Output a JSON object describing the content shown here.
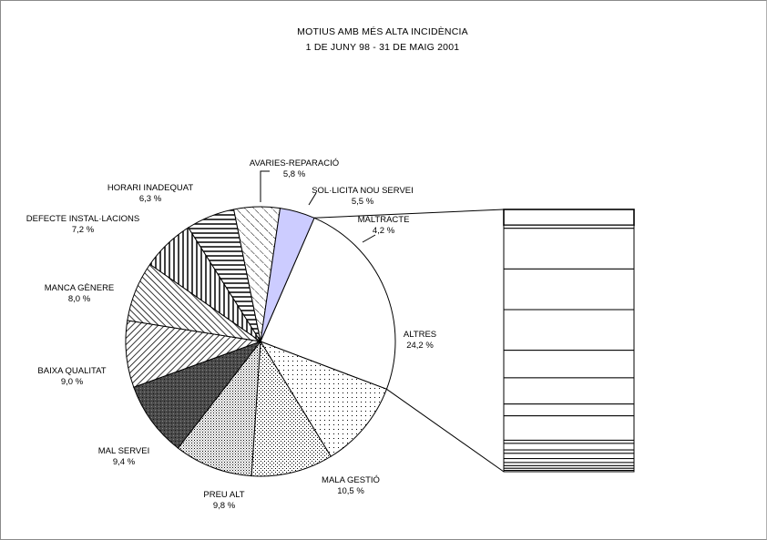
{
  "chart_data": {
    "type": "pie",
    "title": "MOTIUS AMB MÉS ALTA INCIDÈNCIA",
    "subtitle": "1 DE JUNY 98 - 31 DE MAIG 2001",
    "slices": [
      {
        "label": "ALTRES",
        "value": 24.2,
        "value_text": "24,2 %",
        "fill": "blank"
      },
      {
        "label": "MALA GESTIÓ",
        "value": 10.5,
        "value_text": "10,5 %",
        "fill": "fine-dots"
      },
      {
        "label": "PREU ALT",
        "value": 9.8,
        "value_text": "9,8 %",
        "fill": "dots"
      },
      {
        "label": "MAL SERVEI",
        "value": 9.4,
        "value_text": "9,4 %",
        "fill": "dense-dots"
      },
      {
        "label": "BAIXA QUALITAT",
        "value": 9.0,
        "value_text": "9,0 %",
        "fill": "dark-crosshatch"
      },
      {
        "label": "MANCA GÈNERE",
        "value": 8.0,
        "value_text": "8,0 %",
        "fill": "diagonal-down"
      },
      {
        "label": "DEFECTE INSTAL·LACIONS",
        "value": 7.2,
        "value_text": "7,2 %",
        "fill": "diagonal-up"
      },
      {
        "label": "HORARI INADEQUAT",
        "value": 6.3,
        "value_text": "6,3 %",
        "fill": "vertical-lines"
      },
      {
        "label": "AVARIES-REPARACIÓ",
        "value": 5.8,
        "value_text": "5,8 %",
        "fill": "horizontal-lines"
      },
      {
        "label": "SOL·LICITA NOU SERVEI",
        "value": 5.5,
        "value_text": "5,5 %",
        "fill": "wide-diagonal"
      },
      {
        "label": "MALTRACTE",
        "value": 4.2,
        "value_text": "4,2 %",
        "fill": "#ccccff"
      }
    ],
    "exploded_slice": "ALTRES",
    "breakdown_bar": {
      "segments": [
        6.0,
        1.2,
        15.5,
        15.5,
        15.5,
        10.5,
        10.0,
        4.5,
        9.3,
        1.2,
        2.5,
        1.3,
        2.0,
        1.5,
        1.2,
        1.0,
        0.8,
        0.5
      ]
    }
  },
  "colors": {
    "outline": "#000000",
    "background": "#ffffff",
    "maltracte": "#ccccff",
    "frame": "#8a8a8a"
  }
}
